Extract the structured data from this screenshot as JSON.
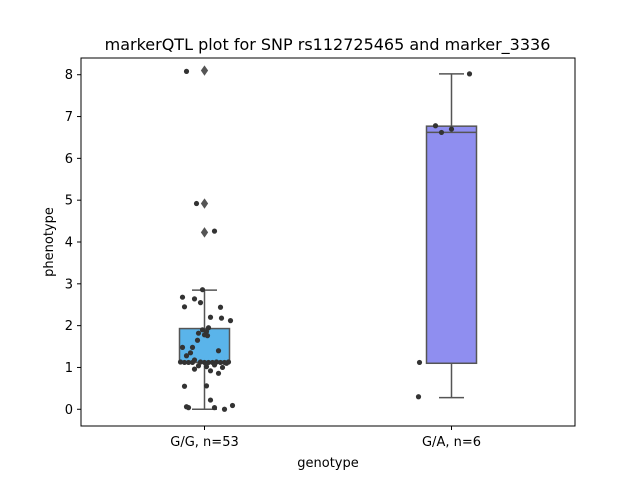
{
  "chart_data": {
    "type": "box",
    "title": "markerQTL plot for SNP rs112725465 and marker_3336",
    "xlabel": "genotype",
    "ylabel": "phenotype",
    "ylim": [
      -0.4,
      8.4
    ],
    "yticks": [
      0,
      1,
      2,
      3,
      4,
      5,
      6,
      7,
      8
    ],
    "grid": false,
    "categories": [
      "G/G, n=53",
      "G/A, n=6"
    ],
    "colors": [
      "#5ab4ea",
      "#8f8ef0"
    ],
    "point_color": "#333333",
    "box_edge_color": "#555555",
    "boxes": [
      {
        "category": "G/G, n=53",
        "q1": 1.12,
        "median": 1.12,
        "q3": 1.93,
        "whisker_low": 0.0,
        "whisker_high": 2.85,
        "outliers": [
          4.23,
          4.92,
          8.1
        ]
      },
      {
        "category": "G/A, n=6",
        "q1": 1.1,
        "median": 6.62,
        "q3": 6.77,
        "whisker_low": 0.28,
        "whisker_high": 8.02,
        "outliers": []
      }
    ],
    "points": [
      [
        {
          "dx": -0.18,
          "y": 8.08
        },
        {
          "dx": -0.08,
          "y": 4.92
        },
        {
          "dx": 0.1,
          "y": 4.26
        },
        {
          "dx": -0.02,
          "y": 2.86
        },
        {
          "dx": -0.22,
          "y": 2.68
        },
        {
          "dx": -0.1,
          "y": 2.64
        },
        {
          "dx": -0.04,
          "y": 2.55
        },
        {
          "dx": -0.2,
          "y": 2.45
        },
        {
          "dx": 0.16,
          "y": 2.44
        },
        {
          "dx": 0.06,
          "y": 2.2
        },
        {
          "dx": 0.17,
          "y": 2.18
        },
        {
          "dx": 0.26,
          "y": 2.12
        },
        {
          "dx": 0.04,
          "y": 1.95
        },
        {
          "dx": -0.02,
          "y": 1.9
        },
        {
          "dx": 0.02,
          "y": 1.86
        },
        {
          "dx": -0.06,
          "y": 1.82
        },
        {
          "dx": 0.0,
          "y": 1.78
        },
        {
          "dx": 0.03,
          "y": 1.76
        },
        {
          "dx": -0.07,
          "y": 1.65
        },
        {
          "dx": -0.12,
          "y": 1.48
        },
        {
          "dx": -0.22,
          "y": 1.48
        },
        {
          "dx": 0.14,
          "y": 1.4
        },
        {
          "dx": -0.14,
          "y": 1.35
        },
        {
          "dx": -0.18,
          "y": 1.28
        },
        {
          "dx": -0.1,
          "y": 1.18
        },
        {
          "dx": -0.24,
          "y": 1.13
        },
        {
          "dx": -0.2,
          "y": 1.12
        },
        {
          "dx": -0.16,
          "y": 1.12
        },
        {
          "dx": -0.12,
          "y": 1.12
        },
        {
          "dx": 0.0,
          "y": 1.12
        },
        {
          "dx": 0.04,
          "y": 1.12
        },
        {
          "dx": 0.08,
          "y": 1.12
        },
        {
          "dx": 0.12,
          "y": 1.13
        },
        {
          "dx": 0.16,
          "y": 1.12
        },
        {
          "dx": 0.2,
          "y": 1.12
        },
        {
          "dx": 0.1,
          "y": 1.06
        },
        {
          "dx": -0.06,
          "y": 1.04
        },
        {
          "dx": 0.02,
          "y": 1.02
        },
        {
          "dx": -0.1,
          "y": 0.96
        },
        {
          "dx": 0.06,
          "y": 0.92
        },
        {
          "dx": 0.14,
          "y": 0.86
        },
        {
          "dx": 0.18,
          "y": 1.0
        },
        {
          "dx": 0.22,
          "y": 1.1
        },
        {
          "dx": -0.2,
          "y": 0.55
        },
        {
          "dx": 0.02,
          "y": 0.56
        },
        {
          "dx": 0.06,
          "y": 0.22
        },
        {
          "dx": -0.18,
          "y": 0.06
        },
        {
          "dx": -0.16,
          "y": 0.04
        },
        {
          "dx": 0.1,
          "y": 0.04
        },
        {
          "dx": 0.2,
          "y": 0.0
        },
        {
          "dx": 0.28,
          "y": 0.09
        },
        {
          "dx": 0.24,
          "y": 1.13
        },
        {
          "dx": -0.04,
          "y": 1.13
        }
      ],
      [
        {
          "dx": -0.32,
          "y": 1.12
        },
        {
          "dx": -0.33,
          "y": 0.3
        },
        {
          "dx": -0.16,
          "y": 6.78
        },
        {
          "dx": -0.1,
          "y": 6.62
        },
        {
          "dx": 0.18,
          "y": 8.02
        },
        {
          "dx": 0.0,
          "y": 6.7
        }
      ]
    ]
  }
}
